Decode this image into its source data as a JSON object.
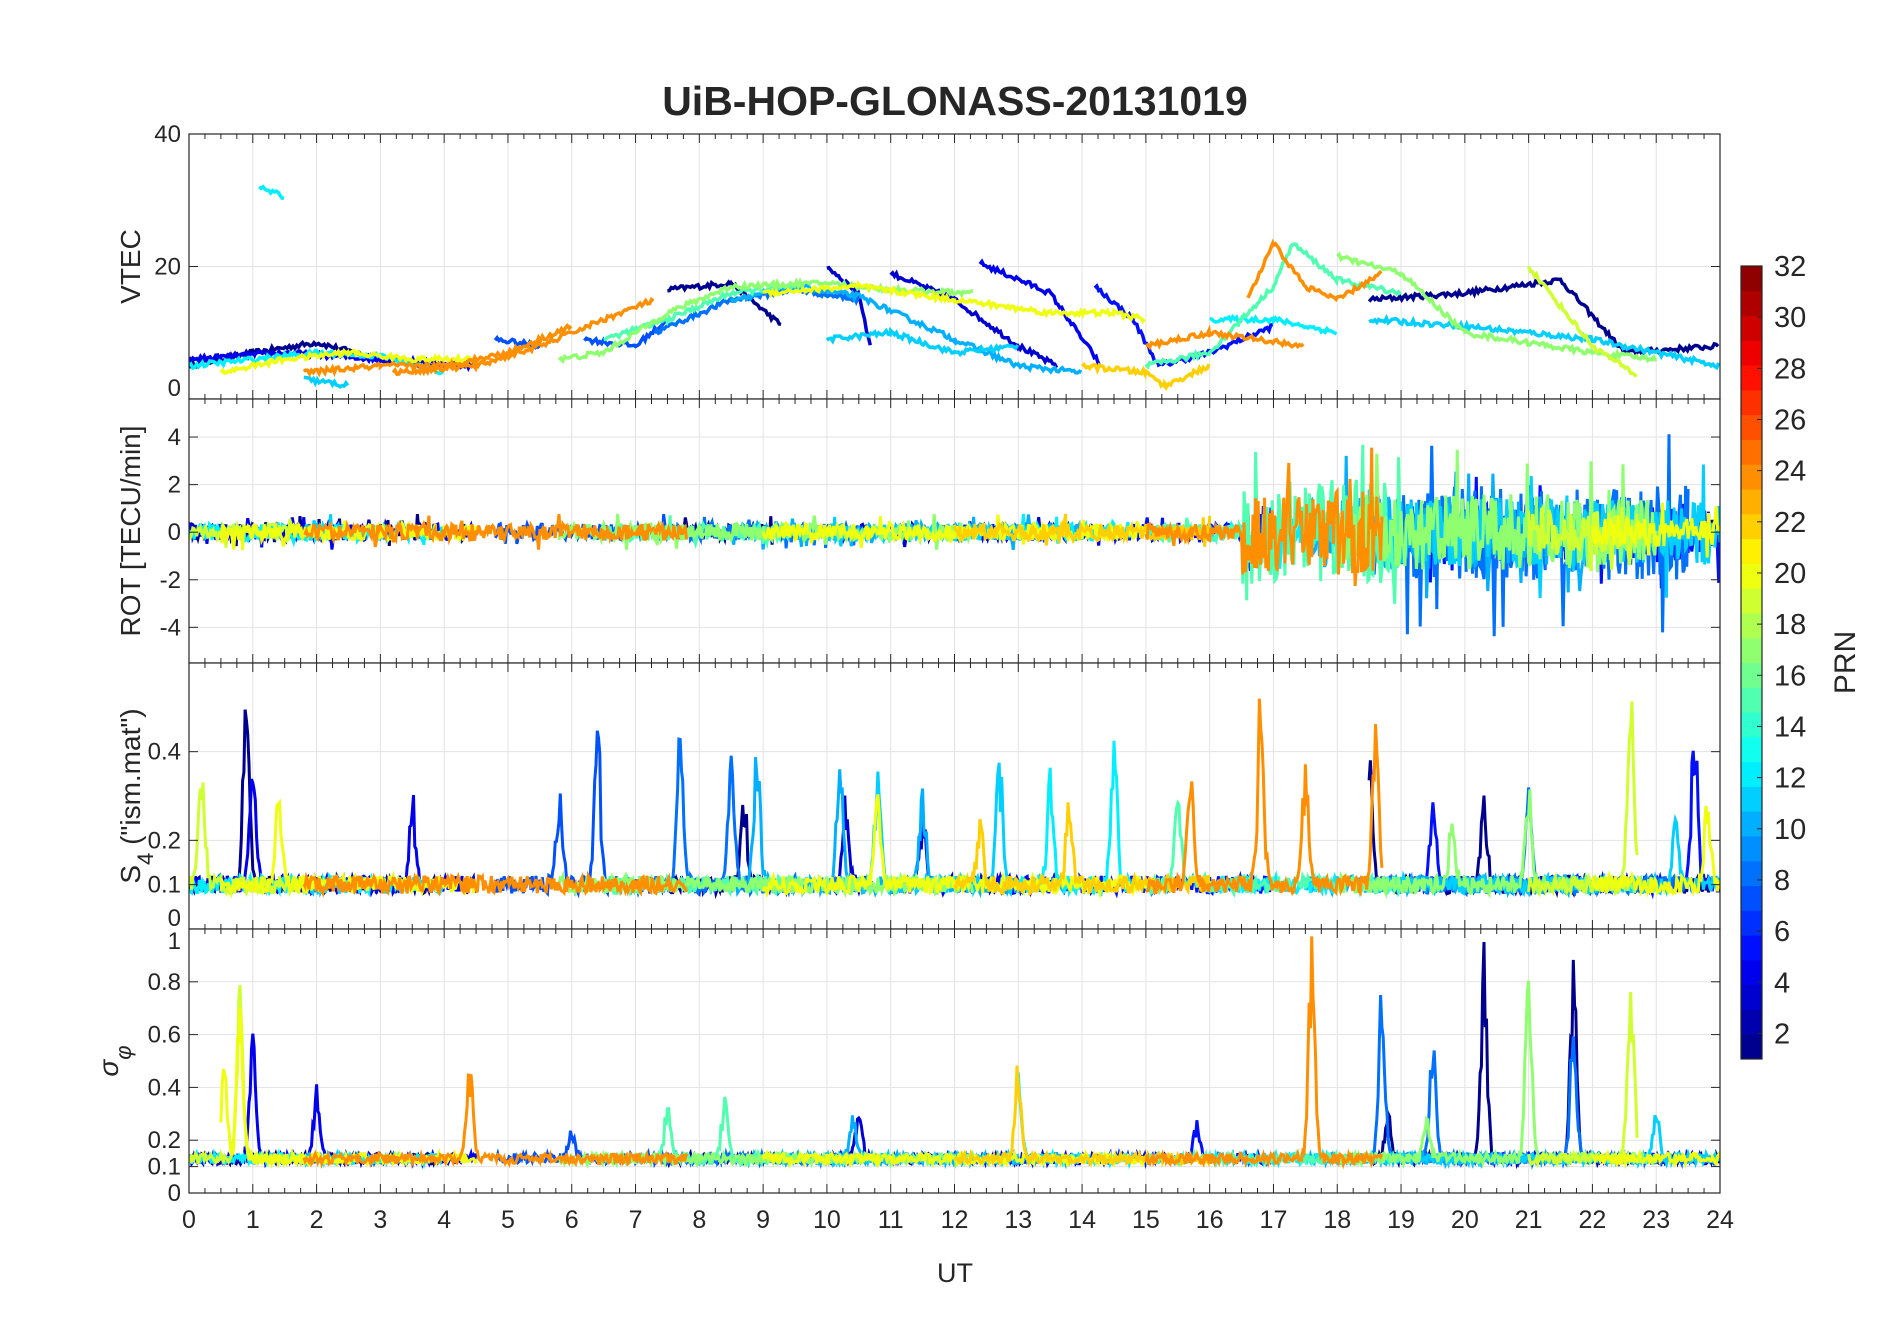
{
  "chart_data": {
    "type": "line",
    "title": "UiB-HOP-GLONASS-20131019",
    "xlabel": "UT",
    "xlim": [
      0,
      24
    ],
    "xticks": [
      0,
      1,
      2,
      3,
      4,
      5,
      6,
      7,
      8,
      9,
      10,
      11,
      12,
      13,
      14,
      15,
      16,
      17,
      18,
      19,
      20,
      21,
      22,
      23,
      24
    ],
    "grid": true,
    "panels": [
      {
        "id": "vtec",
        "ylabel": "VTEC",
        "ylim": [
          0,
          40
        ],
        "yticks": [
          0,
          20,
          40
        ]
      },
      {
        "id": "rot",
        "ylabel": "ROT [TECU/min]",
        "ylim": [
          -5.5,
          5.6
        ],
        "yticks": [
          -4,
          -2,
          0,
          2,
          4
        ]
      },
      {
        "id": "s4",
        "ylabel_main": "S",
        "ylabel_sub": "4",
        "ylabel_rest": " (\"ism.mat\")",
        "ylim": [
          0,
          0.6
        ],
        "yticks": [
          0.1,
          0.2,
          0.4,
          0
        ]
      },
      {
        "id": "sigma",
        "ylabel_main": "σ",
        "ylabel_sub": "φ",
        "ylim": [
          0,
          1
        ],
        "yticks": [
          0,
          0.1,
          0.2,
          0.4,
          0.6,
          0.8,
          1
        ]
      }
    ],
    "colorbar": {
      "label": "PRN",
      "range": [
        1,
        32
      ],
      "ticks": [
        2,
        4,
        6,
        8,
        10,
        12,
        14,
        16,
        18,
        20,
        22,
        24,
        26,
        28,
        30,
        32
      ],
      "levels": 32,
      "colormap": "jet"
    },
    "series": [
      {
        "prn": 1,
        "vtec": [
          [
            [
              0,
              5
            ],
            [
              1,
              7
            ],
            [
              2,
              8.5
            ],
            [
              3,
              6
            ],
            [
              4,
              5
            ]
          ],
          [
            [
              7.5,
              16.5
            ],
            [
              8.5,
              17.5
            ],
            [
              9.3,
              11
            ]
          ],
          [
            [
              18.5,
              15
            ],
            [
              20,
              16
            ],
            [
              21.5,
              18
            ],
            [
              22.5,
              7
            ],
            [
              24,
              8
            ]
          ]
        ],
        "windows": [
          [
            0,
            4
          ],
          [
            7.5,
            9.4
          ],
          [
            18.5,
            24
          ]
        ],
        "rot_amp": 0.5,
        "s4_peaks": [
          [
            0.9,
            0.55
          ],
          [
            8.7,
            0.3
          ],
          [
            18.5,
            0.45
          ],
          [
            20.3,
            0.3
          ]
        ],
        "sigma_peaks": [
          [
            20.3,
            0.95
          ],
          [
            21.7,
            0.92
          ],
          [
            18.8,
            0.3
          ]
        ]
      },
      {
        "prn": 3,
        "vtec": [
          [
            [
              10,
              20
            ],
            [
              10.5,
              16
            ],
            [
              10.7,
              7
            ]
          ],
          [
            [
              11,
              19
            ],
            [
              12,
              15
            ],
            [
              13,
              8
            ],
            [
              13.6,
              5
            ]
          ]
        ],
        "windows": [
          [
            10,
            10.7
          ],
          [
            11,
            13.6
          ]
        ],
        "rot_amp": 0.5,
        "s4_peaks": [
          [
            10.3,
            0.3
          ],
          [
            11.5,
            0.25
          ]
        ],
        "sigma_peaks": [
          [
            10.5,
            0.35
          ]
        ]
      },
      {
        "prn": 4,
        "vtec": [
          [
            [
              12.4,
              20.5
            ],
            [
              13.5,
              16
            ],
            [
              14.3,
              5
            ]
          ],
          [
            [
              0,
              6
            ],
            [
              1.5,
              7
            ],
            [
              3,
              6
            ],
            [
              4.5,
              5
            ]
          ]
        ],
        "windows": [
          [
            12.4,
            14.3
          ],
          [
            0,
            4.5
          ]
        ],
        "rot_amp": 0.6,
        "s4_peaks": [
          [
            4.9,
            0.43
          ],
          [
            1.0,
            0.38
          ],
          [
            3.5,
            0.3
          ],
          [
            23.5,
            0.45
          ]
        ],
        "sigma_peaks": [
          [
            1.0,
            0.6
          ],
          [
            2.0,
            0.4
          ]
        ]
      },
      {
        "prn": 5,
        "vtec": [
          [
            [
              14.2,
              17
            ],
            [
              14.8,
              12
            ],
            [
              15.2,
              5
            ],
            [
              16,
              7
            ],
            [
              17,
              11
            ]
          ]
        ],
        "windows": [
          [
            14.2,
            17
          ],
          [
            19,
            24
          ]
        ],
        "rot_amp": 1.2,
        "s4_peaks": [
          [
            5,
            0.4
          ],
          [
            19.5,
            0.28
          ],
          [
            23.6,
            0.47
          ]
        ],
        "sigma_peaks": [
          [
            15.8,
            0.25
          ]
        ]
      },
      {
        "prn": 7,
        "vtec": [
          [
            [
              4.8,
              9
            ],
            [
              5.5,
              8
            ]
          ],
          [
            [
              6.2,
              9
            ],
            [
              7,
              8
            ],
            [
              7.5,
              12
            ]
          ]
        ],
        "windows": [
          [
            4.8,
            7.5
          ]
        ],
        "rot_amp": 0.5,
        "s4_peaks": [
          [
            6.4,
            0.48
          ],
          [
            5.8,
            0.3
          ]
        ],
        "sigma_peaks": [
          [
            6.0,
            0.22
          ]
        ]
      },
      {
        "prn": 8,
        "vtec": [
          [
            [
              7.3,
              10
            ],
            [
              8.5,
              15
            ],
            [
              9.5,
              16.5
            ],
            [
              10.5,
              15
            ]
          ]
        ],
        "windows": [
          [
            7.3,
            10.5
          ],
          [
            18.5,
            23.5
          ]
        ],
        "rot_amp": 2.0,
        "s4_peaks": [
          [
            7.7,
            0.45
          ],
          [
            8.5,
            0.43
          ],
          [
            21,
            0.3
          ]
        ],
        "sigma_peaks": [
          [
            18.7,
            0.82
          ],
          [
            21.7,
            0.7
          ],
          [
            19.5,
            0.6
          ]
        ]
      },
      {
        "prn": 10,
        "vtec": [
          [
            [
              8.5,
              15
            ],
            [
              9.5,
              17
            ],
            [
              10.5,
              15.5
            ],
            [
              12,
              9
            ],
            [
              13,
              5
            ],
            [
              14,
              4
            ]
          ]
        ],
        "windows": [
          [
            8.5,
            14
          ],
          [
            17.5,
            22
          ]
        ],
        "rot_amp": 1.5,
        "s4_peaks": [
          [
            8.9,
            0.42
          ],
          [
            10.2,
            0.4
          ],
          [
            11.5,
            0.3
          ]
        ],
        "sigma_peaks": [
          [
            10.4,
            0.3
          ]
        ]
      },
      {
        "prn": 11,
        "vtec": [
          [
            [
              1.8,
              3
            ],
            [
              2.5,
              2
            ]
          ],
          [
            [
              10,
              9
            ],
            [
              11,
              10
            ],
            [
              12,
              7
            ],
            [
              13,
              8
            ]
          ],
          [
            [
              18.5,
              12
            ],
            [
              20,
              11
            ],
            [
              22,
              9
            ],
            [
              24,
              5
            ]
          ]
        ],
        "windows": [
          [
            1.8,
            2.5
          ],
          [
            10,
            13
          ],
          [
            18.5,
            24
          ]
        ],
        "rot_amp": 1.4,
        "s4_peaks": [
          [
            10.8,
            0.38
          ],
          [
            12.7,
            0.4
          ],
          [
            23.3,
            0.25
          ]
        ],
        "sigma_peaks": [
          [
            23,
            0.3
          ]
        ]
      },
      {
        "prn": 12,
        "vtec": [
          [
            [
              1.1,
              32
            ],
            [
              1.5,
              30.5
            ]
          ],
          [
            [
              0,
              5
            ],
            [
              2,
              7
            ],
            [
              3,
              6.5
            ],
            [
              4,
              4
            ]
          ],
          [
            [
              16,
              12
            ],
            [
              17,
              12
            ],
            [
              18,
              10
            ]
          ]
        ],
        "windows": [
          [
            0,
            4
          ],
          [
            13,
            14.8
          ],
          [
            16,
            18
          ]
        ],
        "rot_amp": 0.8,
        "s4_peaks": [
          [
            14.5,
            0.46
          ],
          [
            13.5,
            0.35
          ]
        ],
        "sigma_peaks": [
          [
            13,
            0.45
          ]
        ]
      },
      {
        "prn": 15,
        "vtec": [
          [
            [
              6.5,
              9
            ],
            [
              7.5,
              12
            ],
            [
              8.5,
              16
            ],
            [
              9.5,
              17
            ]
          ],
          [
            [
              15,
              5
            ],
            [
              16,
              7
            ],
            [
              17,
              17
            ],
            [
              17.3,
              23.5
            ],
            [
              18,
              18
            ],
            [
              19,
              16
            ]
          ]
        ],
        "windows": [
          [
            6.5,
            9.5
          ],
          [
            15,
            19
          ]
        ],
        "rot_amp": 2.2,
        "s4_peaks": [
          [
            2.7,
            0.43
          ],
          [
            6,
            0.3
          ],
          [
            15.5,
            0.3
          ]
        ],
        "sigma_peaks": [
          [
            7.5,
            0.32
          ],
          [
            8.4,
            0.36
          ]
        ]
      },
      {
        "prn": 17,
        "vtec": [
          [
            [
              5.8,
              6
            ],
            [
              6.5,
              7
            ],
            [
              7.5,
              13
            ],
            [
              8.5,
              17
            ],
            [
              10,
              17.5
            ],
            [
              11,
              16.5
            ],
            [
              12.3,
              16
            ]
          ],
          [
            [
              18,
              21.5
            ],
            [
              19,
              19
            ],
            [
              20,
              10
            ],
            [
              22,
              7
            ],
            [
              23,
              6
            ]
          ]
        ],
        "windows": [
          [
            5.8,
            12.3
          ],
          [
            18,
            23
          ]
        ],
        "rot_amp": 1.6,
        "s4_peaks": [
          [
            21,
            0.3
          ],
          [
            19.8,
            0.25
          ]
        ],
        "sigma_peaks": [
          [
            21,
            0.95
          ],
          [
            19.4,
            0.3
          ]
        ]
      },
      {
        "prn": 19,
        "vtec": [
          [
            [
              21,
              20
            ],
            [
              22,
              8
            ],
            [
              22.7,
              3.5
            ]
          ]
        ],
        "windows": [
          [
            21,
            22.7
          ],
          [
            0,
            2
          ]
        ],
        "rot_amp": 1.0,
        "s4_peaks": [
          [
            22.6,
            0.58
          ],
          [
            0.2,
            0.35
          ]
        ],
        "sigma_peaks": [
          [
            22.6,
            0.92
          ],
          [
            0.8,
            0.8
          ]
        ]
      },
      {
        "prn": 20,
        "vtec": [
          [
            [
              0.5,
              4
            ],
            [
              1.5,
              6
            ],
            [
              2.5,
              7
            ],
            [
              3.5,
              6
            ],
            [
              4.5,
              6
            ]
          ],
          [
            [
              9,
              16
            ],
            [
              10.5,
              17
            ],
            [
              12,
              15
            ],
            [
              13.5,
              13
            ],
            [
              14.5,
              13
            ],
            [
              15,
              12
            ]
          ]
        ],
        "windows": [
          [
            0.5,
            4.5
          ],
          [
            9,
            15
          ],
          [
            22,
            24
          ]
        ],
        "rot_amp": 0.6,
        "s4_peaks": [
          [
            1.4,
            0.3
          ],
          [
            10.8,
            0.3
          ],
          [
            23.8,
            0.3
          ]
        ],
        "sigma_peaks": [
          [
            0.8,
            0.78
          ],
          [
            0.55,
            0.47
          ]
        ]
      },
      {
        "prn": 22,
        "vtec": [
          [
            [
              14,
              5
            ],
            [
              15,
              4
            ],
            [
              15.3,
              2
            ],
            [
              16,
              5
            ]
          ]
        ],
        "windows": [
          [
            12,
            16
          ]
        ],
        "rot_amp": 0.8,
        "s4_peaks": [
          [
            13.8,
            0.3
          ],
          [
            12.4,
            0.22
          ]
        ],
        "sigma_peaks": [
          [
            13,
            0.5
          ]
        ]
      },
      {
        "prn": 24,
        "vtec": [
          [
            [
              1.8,
              4
            ],
            [
              3,
              5
            ],
            [
              4,
              5
            ],
            [
              5,
              7
            ],
            [
              6,
              11
            ]
          ],
          [
            [
              3.2,
              4
            ],
            [
              4.5,
              5
            ],
            [
              5.5,
              8
            ],
            [
              6.5,
              12
            ],
            [
              7.3,
              15
            ]
          ],
          [
            [
              16.6,
              15
            ],
            [
              17,
              23.5
            ],
            [
              17.5,
              17
            ],
            [
              18,
              15
            ],
            [
              18.7,
              19
            ]
          ],
          [
            [
              15,
              8
            ],
            [
              16,
              10
            ],
            [
              17.5,
              8
            ]
          ]
        ],
        "windows": [
          [
            1.8,
            7.8
          ],
          [
            15,
            18.7
          ]
        ],
        "rot_amp": 1.8,
        "s4_peaks": [
          [
            16.8,
            0.52
          ],
          [
            17.5,
            0.35
          ],
          [
            18.6,
            0.47
          ],
          [
            15.7,
            0.35
          ]
        ],
        "sigma_peaks": [
          [
            17.6,
            0.96
          ],
          [
            4.4,
            0.48
          ]
        ]
      }
    ]
  }
}
